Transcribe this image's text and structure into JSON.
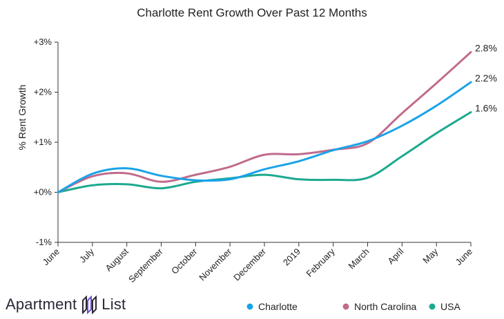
{
  "chart_data": {
    "type": "line",
    "title": "Charlotte Rent Growth Over Past 12 Months",
    "xlabel": "",
    "ylabel": "% Rent Growth",
    "categories": [
      "June",
      "July",
      "August",
      "September",
      "October",
      "November",
      "December",
      "2019",
      "February",
      "March",
      "April",
      "May",
      "June"
    ],
    "ylim": [
      -1,
      3
    ],
    "yticks": [
      {
        "value": 3,
        "label": "+3%"
      },
      {
        "value": 2,
        "label": "+2%"
      },
      {
        "value": 1,
        "label": "+1%"
      },
      {
        "value": 0,
        "label": "+0%"
      },
      {
        "value": -1,
        "label": "-1%"
      }
    ],
    "grid": false,
    "legend_position": "bottom-right",
    "series": [
      {
        "name": "Charlotte",
        "color": "#1aa3e8",
        "values": [
          0,
          0.37,
          0.48,
          0.33,
          0.24,
          0.26,
          0.46,
          0.62,
          0.84,
          1.02,
          1.33,
          1.73,
          2.2
        ],
        "end_label": "2.2%"
      },
      {
        "name": "North Carolina",
        "color": "#c06b8c",
        "values": [
          0,
          0.32,
          0.38,
          0.21,
          0.35,
          0.51,
          0.75,
          0.76,
          0.85,
          0.98,
          1.58,
          2.18,
          2.8
        ],
        "end_label": "2.8%"
      },
      {
        "name": "USA",
        "color": "#1ca98f",
        "values": [
          0,
          0.14,
          0.16,
          0.08,
          0.21,
          0.28,
          0.35,
          0.26,
          0.25,
          0.29,
          0.72,
          1.18,
          1.6
        ],
        "end_label": "1.6%"
      }
    ]
  },
  "brand": {
    "name_left": "Apartment",
    "name_right": "List",
    "logo_icon": "apartment-list-logo-icon"
  }
}
